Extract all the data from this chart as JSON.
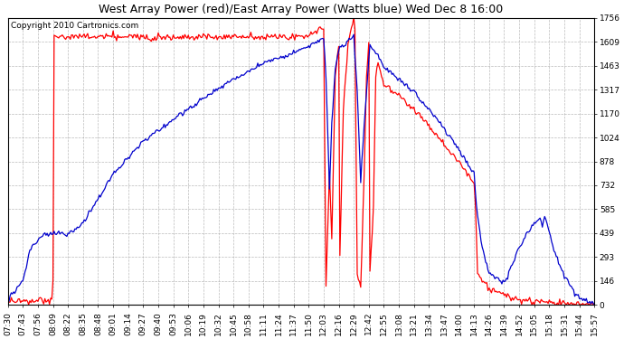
{
  "title": "West Array Power (red)/East Array Power (Watts blue) Wed Dec 8 16:00",
  "copyright": "Copyright 2010 Cartronics.com",
  "bg_color": "#ffffff",
  "plot_bg_color": "#ffffff",
  "grid_color": "#aaaaaa",
  "red_color": "#ff0000",
  "blue_color": "#0000cc",
  "ymin": 0.0,
  "ymax": 1755.7,
  "yticks": [
    0.0,
    146.3,
    292.6,
    438.9,
    585.2,
    731.5,
    877.9,
    1024.2,
    1170.5,
    1316.8,
    1463.1,
    1609.4,
    1755.7
  ],
  "xtick_labels": [
    "07:30",
    "07:43",
    "07:56",
    "08:09",
    "08:22",
    "08:35",
    "08:48",
    "09:01",
    "09:14",
    "09:27",
    "09:40",
    "09:53",
    "10:06",
    "10:19",
    "10:32",
    "10:45",
    "10:58",
    "11:11",
    "11:24",
    "11:37",
    "11:50",
    "12:03",
    "12:16",
    "12:29",
    "12:42",
    "12:55",
    "13:08",
    "13:21",
    "13:34",
    "13:47",
    "14:00",
    "14:13",
    "14:26",
    "14:39",
    "14:52",
    "15:05",
    "15:18",
    "15:31",
    "15:44",
    "15:57"
  ],
  "title_fontsize": 9,
  "copyright_fontsize": 6.5,
  "tick_fontsize": 6.5,
  "linewidth": 0.9
}
